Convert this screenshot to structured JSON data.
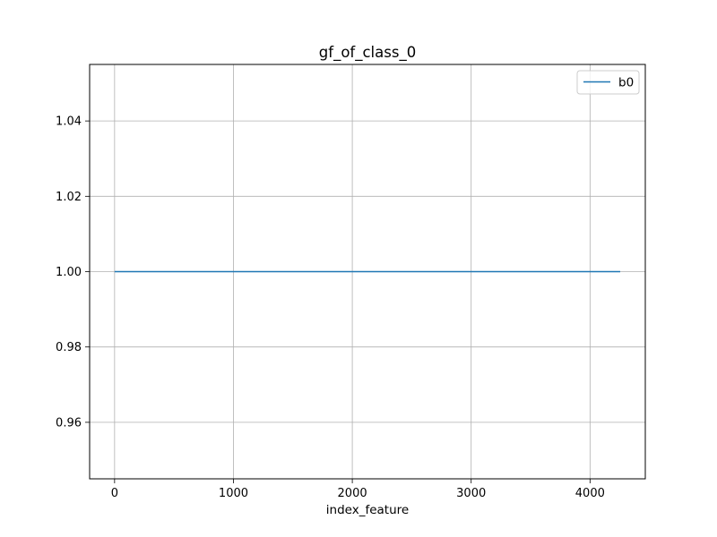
{
  "chart_data": {
    "type": "line",
    "title": "gf_of_class_0",
    "xlabel": "index_feature",
    "ylabel": "",
    "xlim": [
      -210,
      4465
    ],
    "ylim": [
      0.945,
      1.055
    ],
    "x_ticks": [
      0,
      1000,
      2000,
      3000,
      4000
    ],
    "x_tick_labels": [
      "0",
      "1000",
      "2000",
      "3000",
      "4000"
    ],
    "y_ticks": [
      0.96,
      0.98,
      1.0,
      1.02,
      1.04
    ],
    "y_tick_labels": [
      "0.96",
      "0.98",
      "1.00",
      "1.02",
      "1.04"
    ],
    "grid": true,
    "legend_position": "top-right",
    "series": [
      {
        "name": "b0",
        "color": "#1f77b4",
        "x": [
          0,
          4254
        ],
        "values": [
          1.0,
          1.0
        ]
      }
    ]
  }
}
